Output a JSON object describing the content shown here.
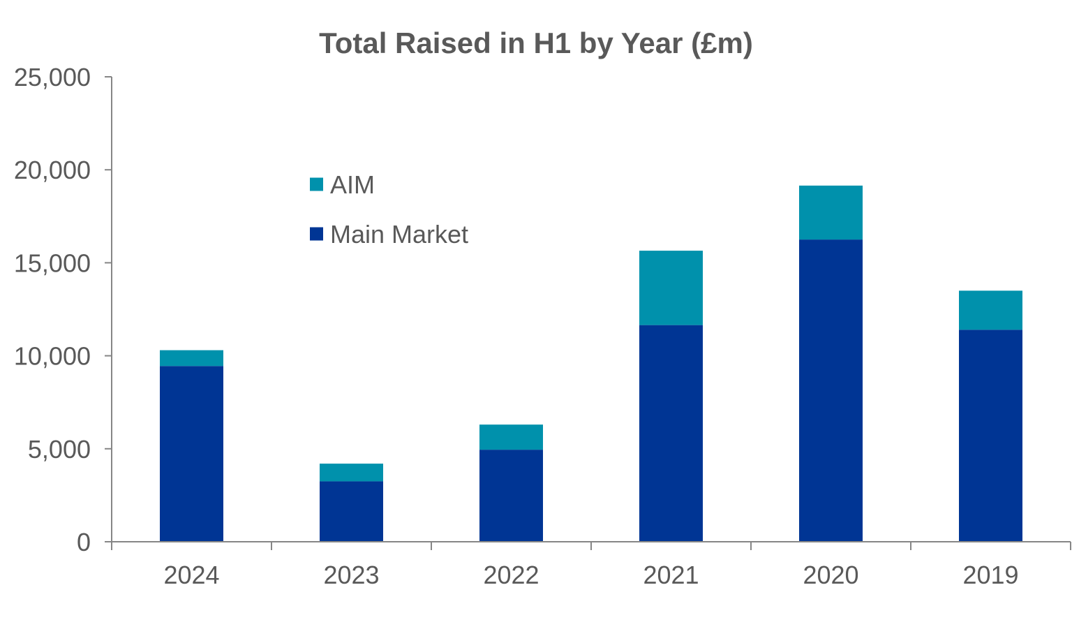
{
  "chart_data": {
    "type": "bar",
    "stacked": true,
    "title": "Total Raised in H1 by Year (£m)",
    "xlabel": "",
    "ylabel": "",
    "categories": [
      "2024",
      "2023",
      "2022",
      "2021",
      "2020",
      "2019"
    ],
    "series": [
      {
        "name": "Main Market",
        "color": "#003594",
        "values": [
          9450,
          3250,
          4950,
          11650,
          16250,
          11400
        ]
      },
      {
        "name": "AIM",
        "color": "#0091AC",
        "values": [
          850,
          950,
          1350,
          4000,
          2900,
          2100
        ]
      }
    ],
    "ylim": [
      0,
      25000
    ],
    "yticks": [
      0,
      5000,
      10000,
      15000,
      20000,
      25000
    ],
    "ytick_labels": [
      "0",
      "5,000",
      "10,000",
      "15,000",
      "20,000",
      "25,000"
    ],
    "grid": false,
    "legend": {
      "placement": "upper-left-inside",
      "order": [
        "AIM",
        "Main Market"
      ]
    }
  }
}
